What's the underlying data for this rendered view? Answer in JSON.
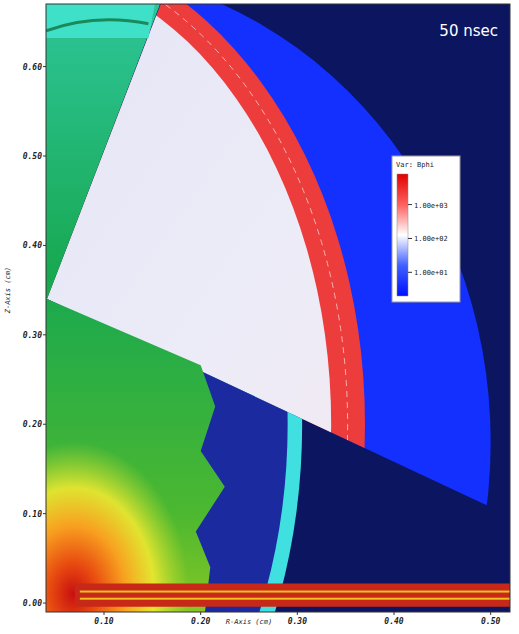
{
  "chart_data": {
    "type": "pseudocolor",
    "annotations": [
      "50 nsec"
    ],
    "xlabel": "R-Axis (cm)",
    "ylabel": "Z-Axis (cm)",
    "xlim": [
      0.04,
      0.52
    ],
    "ylim": [
      -0.01,
      0.67
    ],
    "xticks": [
      {
        "value": 0.1,
        "label": "0.10"
      },
      {
        "value": 0.2,
        "label": "0.20"
      },
      {
        "value": 0.3,
        "label": "0.30"
      },
      {
        "value": 0.4,
        "label": "0.40"
      },
      {
        "value": 0.5,
        "label": "0.50"
      }
    ],
    "yticks": [
      {
        "value": 0,
        "label": "0.00"
      },
      {
        "value": 0.1,
        "label": "0.10"
      },
      {
        "value": 0.2,
        "label": "0.20"
      },
      {
        "value": 0.3,
        "label": "0.30"
      },
      {
        "value": 0.4,
        "label": "0.40"
      },
      {
        "value": 0.5,
        "label": "0.50"
      },
      {
        "value": 0.6,
        "label": "0.60"
      }
    ],
    "colorbar": {
      "title": "Var: Bphi",
      "lim": [
        2,
        8000
      ],
      "log": true,
      "ticks": [
        {
          "value": 1000,
          "label": "1.00e+03"
        },
        {
          "value": 100,
          "label": "1.00e+02"
        },
        {
          "value": 10,
          "label": "1.00e+01"
        }
      ]
    }
  }
}
